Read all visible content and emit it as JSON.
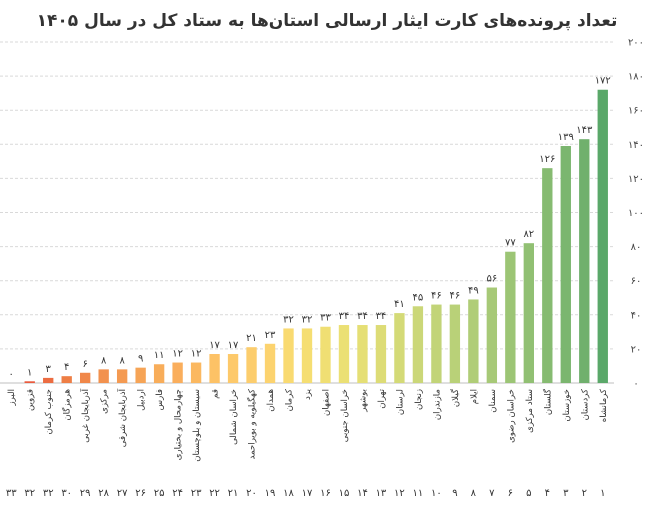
{
  "chart_data": {
    "type": "bar",
    "title": "تعداد پرونده‌های کارت ایثار ارسالی استان‌ها به ستاد کل در سال ۱۴۰۵",
    "xlabel": "",
    "ylabel": "",
    "ylim": [
      0,
      200
    ],
    "ytick_values": [
      0,
      20,
      40,
      60,
      80,
      100,
      120,
      140,
      160,
      180,
      200
    ],
    "ytick_labels": [
      "۰",
      "۲۰",
      "۴۰",
      "۶۰",
      "۸۰",
      "۱۰۰",
      "۱۲۰",
      "۱۴۰",
      "۱۶۰",
      "۱۸۰",
      "۲۰۰"
    ],
    "y_axis_side": "right",
    "grid": true,
    "legend": "none",
    "categories": [
      "البرز",
      "قزوین",
      "جنوب کرمان",
      "هرمزگان",
      "آذربایجان غربی",
      "مرکزی",
      "آذربایجان شرقی",
      "اردبیل",
      "فارس",
      "چهارمحال و بختیاری",
      "سیستان و بلوچستان",
      "قم",
      "خراسان شمالی",
      "کهگیلویه و بویراحمد",
      "همدان",
      "کرمان",
      "یزد",
      "اصفهان",
      "خراسان جنوبی",
      "بوشهر",
      "تهران",
      "لرستان",
      "زنجان",
      "مازندران",
      "گیلان",
      "ایلام",
      "سمنان",
      "خراسان رضوی",
      "ستاد مرکزی",
      "گلستان",
      "خوزستان",
      "کردستان",
      "کرمانشاه"
    ],
    "values": [
      0,
      1,
      3,
      4,
      6,
      8,
      8,
      9,
      11,
      12,
      12,
      17,
      17,
      21,
      23,
      32,
      32,
      33,
      34,
      34,
      34,
      41,
      45,
      46,
      46,
      49,
      56,
      77,
      82,
      126,
      139,
      143,
      172
    ],
    "value_labels": [
      "۰",
      "۱",
      "۳",
      "۴",
      "۶",
      "۸",
      "۸",
      "۹",
      "۱۱",
      "۱۲",
      "۱۲",
      "۱۷",
      "۱۷",
      "۲۱",
      "۲۳",
      "۳۲",
      "۳۲",
      "۳۳",
      "۳۴",
      "۳۴",
      "۳۴",
      "۴۱",
      "۴۵",
      "۴۶",
      "۴۶",
      "۴۹",
      "۵۶",
      "۷۷",
      "۸۲",
      "۱۲۶",
      "۱۳۹",
      "۱۴۳",
      "۱۷۲"
    ],
    "ranks": [
      "۳۳",
      "۳۲",
      "۳۲",
      "۳۰",
      "۲۹",
      "۲۸",
      "۲۷",
      "۲۶",
      "۲۵",
      "۲۴",
      "۲۳",
      "۲۲",
      "۲۱",
      "۲۰",
      "۱۹",
      "۱۸",
      "۱۷",
      "۱۶",
      "۱۵",
      "۱۴",
      "۱۳",
      "۱۲",
      "۱۱",
      "۱۰",
      "۹",
      "۸",
      "۷",
      "۶",
      "۵",
      "۴",
      "۳",
      "۲",
      "۱"
    ],
    "bar_colors": [
      "#e8483a",
      "#ea5a3d",
      "#ec6c41",
      "#ee7e45",
      "#f08749",
      "#f2914e",
      "#f49a52",
      "#f6a456",
      "#f8ad5a",
      "#faae5c",
      "#fbb860",
      "#fdc266",
      "#fdc96a",
      "#fccd6d",
      "#fcd36f",
      "#f9da71",
      "#f5de72",
      "#f0df73",
      "#ebe074",
      "#e5df75",
      "#dddc76",
      "#d4da77",
      "#cbd778",
      "#c2d478",
      "#b9d178",
      "#b0cd77",
      "#a7c977",
      "#9cc575",
      "#91c073",
      "#86bb71",
      "#7bb66f",
      "#70b06d",
      "#5aa869"
    ]
  }
}
